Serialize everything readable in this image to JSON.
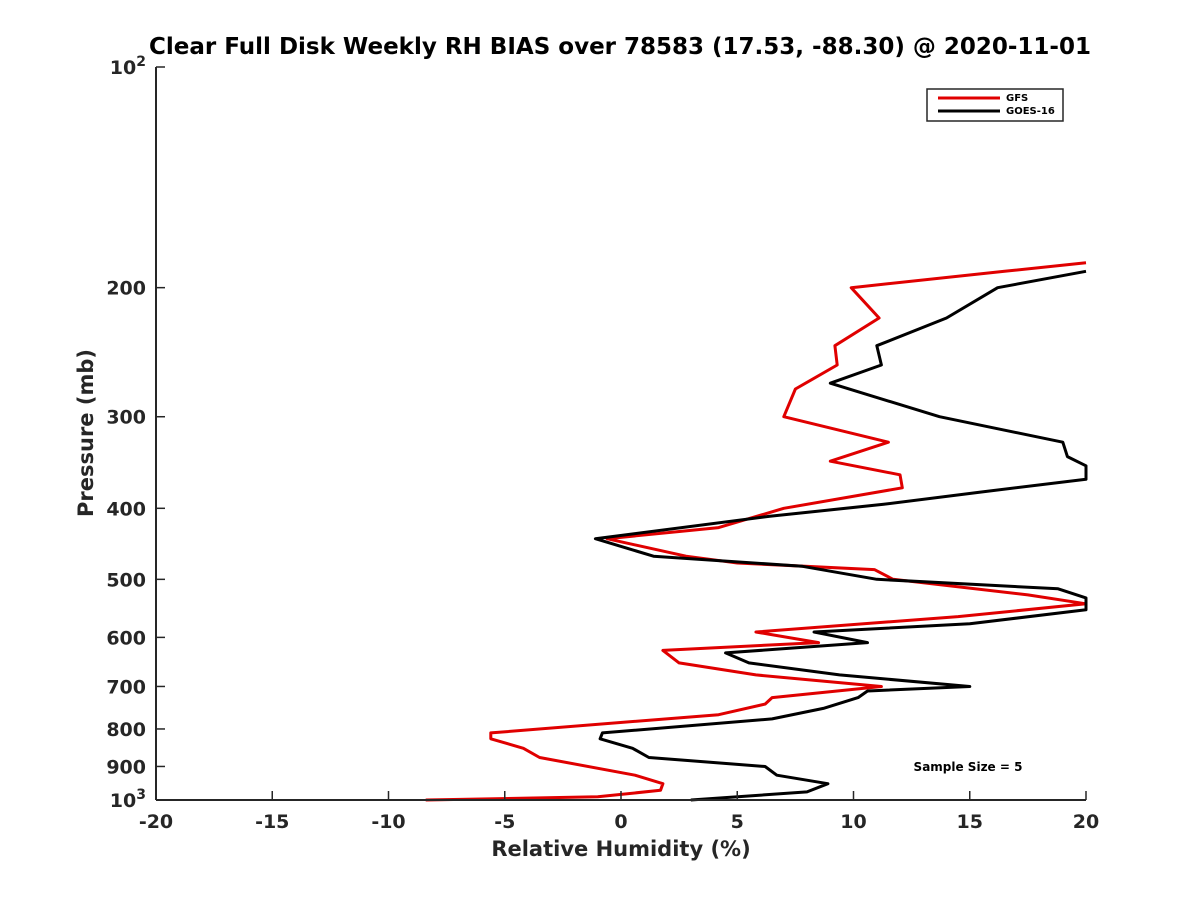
{
  "chart_data": {
    "type": "line",
    "title": "Clear Full Disk Weekly RH BIAS over 78583 (17.53, -88.30) @ 2020-11-01",
    "xlabel": "Relative Humidity (%)",
    "ylabel": "Pressure (mb)",
    "xlim": [
      -20,
      20
    ],
    "ylim": [
      100,
      1000
    ],
    "y_scale": "log",
    "y_reversed": true,
    "grid": false,
    "legend_position": "top-right",
    "x_ticks": [
      -20,
      -15,
      -10,
      -5,
      0,
      5,
      10,
      15,
      20
    ],
    "x_tick_labels": [
      "-20",
      "-15",
      "-10",
      "-5",
      "0",
      "5",
      "10",
      "15",
      "20"
    ],
    "y_ticks": [
      100,
      200,
      300,
      400,
      500,
      600,
      700,
      800,
      900,
      1000
    ],
    "y_tick_labels": [
      {
        "base": "10",
        "sup": "2"
      },
      {
        "base": "200",
        "sup": ""
      },
      {
        "base": "300",
        "sup": ""
      },
      {
        "base": "400",
        "sup": ""
      },
      {
        "base": "500",
        "sup": ""
      },
      {
        "base": "600",
        "sup": ""
      },
      {
        "base": "700",
        "sup": ""
      },
      {
        "base": "800",
        "sup": ""
      },
      {
        "base": "900",
        "sup": ""
      },
      {
        "base": "10",
        "sup": "3"
      }
    ],
    "annotation": "Sample Size = 5",
    "series": [
      {
        "name": "GFS",
        "color": "#e00000",
        "points": [
          {
            "p": 1000,
            "x": -8.4
          },
          {
            "p": 990,
            "x": -1.0
          },
          {
            "p": 970,
            "x": 1.7
          },
          {
            "p": 950,
            "x": 1.8
          },
          {
            "p": 925,
            "x": 0.6
          },
          {
            "p": 875,
            "x": -3.5
          },
          {
            "p": 850,
            "x": -4.2
          },
          {
            "p": 825,
            "x": -5.6
          },
          {
            "p": 810,
            "x": -5.6
          },
          {
            "p": 765,
            "x": 4.2
          },
          {
            "p": 740,
            "x": 6.2
          },
          {
            "p": 725,
            "x": 6.5
          },
          {
            "p": 700,
            "x": 11.2
          },
          {
            "p": 675,
            "x": 5.8
          },
          {
            "p": 650,
            "x": 2.5
          },
          {
            "p": 625,
            "x": 1.8
          },
          {
            "p": 610,
            "x": 8.5
          },
          {
            "p": 590,
            "x": 5.8
          },
          {
            "p": 562,
            "x": 14.5
          },
          {
            "p": 540,
            "x": 20.0
          },
          {
            "p": 525,
            "x": 17.5
          },
          {
            "p": 500,
            "x": 11.7
          },
          {
            "p": 485,
            "x": 10.9
          },
          {
            "p": 475,
            "x": 5.0
          },
          {
            "p": 465,
            "x": 2.8
          },
          {
            "p": 440,
            "x": -0.6
          },
          {
            "p": 425,
            "x": 4.2
          },
          {
            "p": 400,
            "x": 7.0
          },
          {
            "p": 375,
            "x": 12.1
          },
          {
            "p": 360,
            "x": 12.0
          },
          {
            "p": 345,
            "x": 9.0
          },
          {
            "p": 325,
            "x": 11.5
          },
          {
            "p": 300,
            "x": 7.0
          },
          {
            "p": 275,
            "x": 7.5
          },
          {
            "p": 255,
            "x": 9.3
          },
          {
            "p": 240,
            "x": 9.2
          },
          {
            "p": 220,
            "x": 11.1
          },
          {
            "p": 200,
            "x": 9.9
          },
          {
            "p": 190,
            "x": 16.5
          },
          {
            "p": 185,
            "x": 20.0
          }
        ]
      },
      {
        "name": "GOES-16",
        "color": "#000000",
        "points": [
          {
            "p": 1000,
            "x": 3.0
          },
          {
            "p": 975,
            "x": 8.0
          },
          {
            "p": 950,
            "x": 8.9
          },
          {
            "p": 925,
            "x": 6.7
          },
          {
            "p": 900,
            "x": 6.2
          },
          {
            "p": 875,
            "x": 1.2
          },
          {
            "p": 850,
            "x": 0.5
          },
          {
            "p": 825,
            "x": -0.9
          },
          {
            "p": 810,
            "x": -0.8
          },
          {
            "p": 775,
            "x": 6.5
          },
          {
            "p": 750,
            "x": 8.7
          },
          {
            "p": 725,
            "x": 10.2
          },
          {
            "p": 710,
            "x": 10.6
          },
          {
            "p": 700,
            "x": 15.0
          },
          {
            "p": 675,
            "x": 9.4
          },
          {
            "p": 650,
            "x": 5.5
          },
          {
            "p": 630,
            "x": 4.5
          },
          {
            "p": 610,
            "x": 10.6
          },
          {
            "p": 590,
            "x": 8.3
          },
          {
            "p": 575,
            "x": 15.0
          },
          {
            "p": 550,
            "x": 20.0
          },
          {
            "p": 530,
            "x": 20.0
          },
          {
            "p": 515,
            "x": 18.8
          },
          {
            "p": 500,
            "x": 11.0
          },
          {
            "p": 480,
            "x": 7.8
          },
          {
            "p": 465,
            "x": 1.4
          },
          {
            "p": 440,
            "x": -1.1
          },
          {
            "p": 410,
            "x": 6.4
          },
          {
            "p": 395,
            "x": 11.3
          },
          {
            "p": 380,
            "x": 15.5
          },
          {
            "p": 365,
            "x": 20.0
          },
          {
            "p": 350,
            "x": 20.0
          },
          {
            "p": 340,
            "x": 19.2
          },
          {
            "p": 325,
            "x": 19.0
          },
          {
            "p": 300,
            "x": 13.7
          },
          {
            "p": 270,
            "x": 9.0
          },
          {
            "p": 255,
            "x": 11.2
          },
          {
            "p": 240,
            "x": 11.0
          },
          {
            "p": 220,
            "x": 14.0
          },
          {
            "p": 200,
            "x": 16.2
          },
          {
            "p": 190,
            "x": 20.0
          }
        ]
      }
    ]
  }
}
